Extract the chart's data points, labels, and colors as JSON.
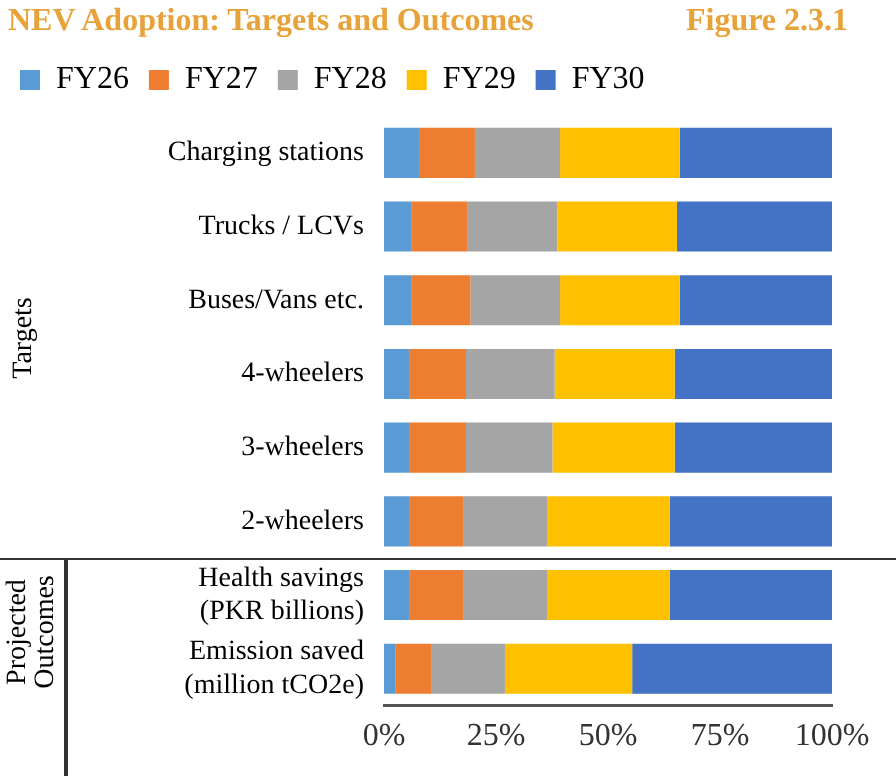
{
  "chart_data": {
    "type": "bar",
    "orientation": "horizontal",
    "stacked": true,
    "title": "NEV Adoption: Targets and Outcomes",
    "annotations": [
      "Figure 2.3.1",
      "Targets",
      "Projected\nOutcomes"
    ],
    "categories": [
      "Charging stations",
      "Trucks / LCVs",
      "Buses/Vans etc.",
      "4-wheelers",
      "3-wheelers",
      "2-wheelers",
      "Health savings\n(PKR billions)",
      "Emission saved\n(million tCO2e)"
    ],
    "series": [
      {
        "name": "FY26",
        "color": "#5b9bd5",
        "values": [
          7.8,
          6.2,
          6.2,
          5.6,
          5.6,
          5.6,
          5.6,
          2.5
        ]
      },
      {
        "name": "FY27",
        "color": "#ed7d31",
        "values": [
          12.5,
          12.5,
          13.1,
          12.7,
          12.7,
          12.2,
          12.2,
          8.0
        ]
      },
      {
        "name": "FY28",
        "color": "#a5a5a5",
        "values": [
          19.0,
          20.0,
          20.0,
          19.8,
          19.3,
          18.7,
          18.7,
          16.5
        ]
      },
      {
        "name": "FY29",
        "color": "#ffc000",
        "values": [
          26.7,
          26.7,
          26.7,
          26.8,
          27.3,
          27.3,
          27.3,
          28.4
        ]
      },
      {
        "name": "FY30",
        "color": "#4472c4",
        "values": [
          34.0,
          34.6,
          34.0,
          35.1,
          35.1,
          36.2,
          36.2,
          44.6
        ]
      }
    ],
    "xlim": [
      0,
      100
    ],
    "xticks": [
      {
        "value": 0,
        "label": "0%"
      },
      {
        "value": 25,
        "label": "25%"
      },
      {
        "value": 50,
        "label": "50%"
      },
      {
        "value": 75,
        "label": "75%"
      },
      {
        "value": 100,
        "label": "100%"
      }
    ],
    "grid": false,
    "legend": "top"
  }
}
